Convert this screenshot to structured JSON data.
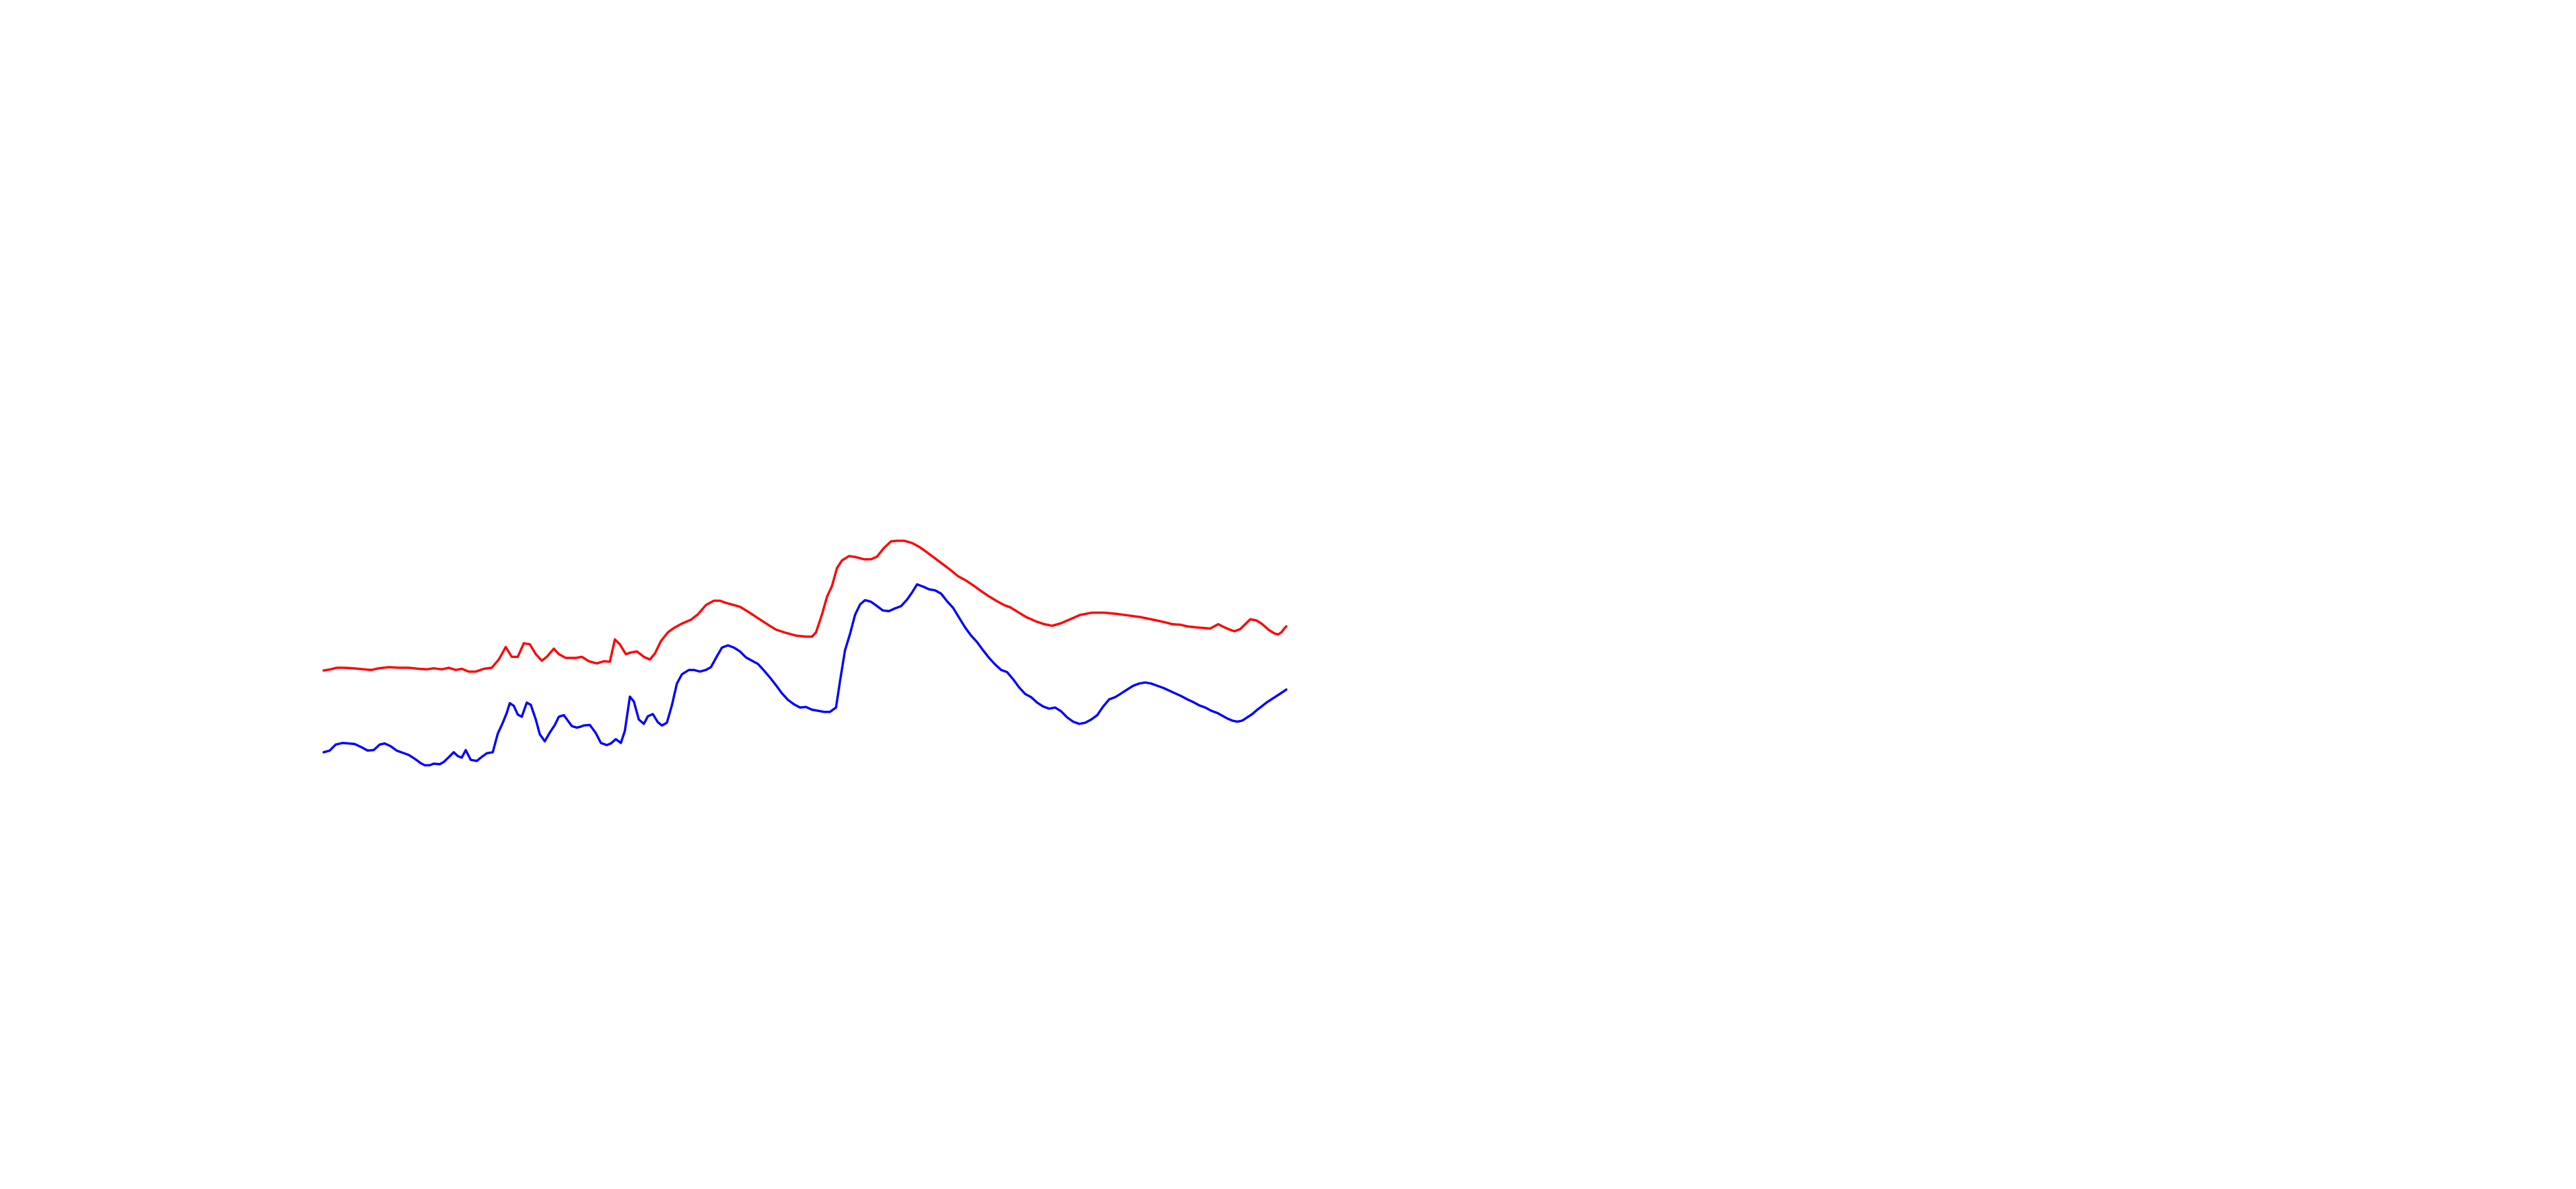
{
  "chart_data": {
    "type": "line",
    "title": "",
    "xlabel": "",
    "ylabel": "",
    "axes_visible": false,
    "grid": false,
    "legend": "none",
    "x_range": [
      0,
      100
    ],
    "y_range": [
      0,
      100
    ],
    "series": [
      {
        "color": "#ff0000",
        "points": [
          [
            0,
            40
          ],
          [
            0.7,
            40.2
          ],
          [
            1.3,
            40.5
          ],
          [
            2,
            40.5
          ],
          [
            3,
            40.4
          ],
          [
            4,
            40.2
          ],
          [
            4.8,
            40.1
          ],
          [
            5.5,
            40.4
          ],
          [
            6.5,
            40.6
          ],
          [
            7.5,
            40.5
          ],
          [
            8.5,
            40.5
          ],
          [
            9.5,
            40.3
          ],
          [
            10.3,
            40.2
          ],
          [
            11,
            40.4
          ],
          [
            11.8,
            40.2
          ],
          [
            12.5,
            40.5
          ],
          [
            13.2,
            40.1
          ],
          [
            13.8,
            40.3
          ],
          [
            14.5,
            39.8
          ],
          [
            15.2,
            39.8
          ],
          [
            16,
            40.3
          ],
          [
            16.8,
            40.5
          ],
          [
            17.5,
            42
          ],
          [
            18.2,
            44.3
          ],
          [
            18.8,
            42.5
          ],
          [
            19.4,
            42.5
          ],
          [
            20,
            45
          ],
          [
            20.6,
            44.8
          ],
          [
            21.2,
            43
          ],
          [
            21.8,
            41.8
          ],
          [
            22.3,
            42.5
          ],
          [
            23,
            44
          ],
          [
            23.5,
            43
          ],
          [
            24.2,
            42.3
          ],
          [
            25.2,
            42.3
          ],
          [
            25.8,
            42.5
          ],
          [
            26.5,
            41.7
          ],
          [
            27.3,
            41.3
          ],
          [
            28,
            41.7
          ],
          [
            28.6,
            41.6
          ],
          [
            29.1,
            45.7
          ],
          [
            29.6,
            44.8
          ],
          [
            30.2,
            43
          ],
          [
            30.7,
            43.3
          ],
          [
            31.3,
            43.5
          ],
          [
            32,
            42.5
          ],
          [
            32.6,
            42
          ],
          [
            33.1,
            43.1
          ],
          [
            33.7,
            45.4
          ],
          [
            34.4,
            47
          ],
          [
            35,
            47.8
          ],
          [
            35.8,
            48.6
          ],
          [
            36.7,
            49.3
          ],
          [
            37.4,
            50.3
          ],
          [
            38.2,
            52
          ],
          [
            39,
            52.8
          ],
          [
            39.6,
            52.8
          ],
          [
            40.2,
            52.4
          ],
          [
            41,
            52
          ],
          [
            41.6,
            51.7
          ],
          [
            42.4,
            50.8
          ],
          [
            43.4,
            49.6
          ],
          [
            44.4,
            48.4
          ],
          [
            45.2,
            47.5
          ],
          [
            46.2,
            46.9
          ],
          [
            47.2,
            46.4
          ],
          [
            48.2,
            46.2
          ],
          [
            48.8,
            46.2
          ],
          [
            49.2,
            47
          ],
          [
            49.8,
            50.3
          ],
          [
            50.3,
            53.5
          ],
          [
            50.8,
            55.5
          ],
          [
            51.3,
            58.8
          ],
          [
            51.8,
            60.2
          ],
          [
            52.5,
            61
          ],
          [
            53.2,
            60.8
          ],
          [
            54,
            60.4
          ],
          [
            54.7,
            60.4
          ],
          [
            55.3,
            60.9
          ],
          [
            56,
            62.5
          ],
          [
            56.7,
            63.7
          ],
          [
            57.3,
            63.8
          ],
          [
            58,
            63.8
          ],
          [
            58.8,
            63.4
          ],
          [
            59.5,
            62.7
          ],
          [
            60.2,
            61.8
          ],
          [
            61,
            60.7
          ],
          [
            61.8,
            59.6
          ],
          [
            62.6,
            58.5
          ],
          [
            63.4,
            57.3
          ],
          [
            64.2,
            56.5
          ],
          [
            65,
            55.5
          ],
          [
            65.6,
            54.7
          ],
          [
            66.4,
            53.7
          ],
          [
            67.2,
            52.8
          ],
          [
            68,
            52
          ],
          [
            68.6,
            51.6
          ],
          [
            69.4,
            50.7
          ],
          [
            70.2,
            49.8
          ],
          [
            71.2,
            49
          ],
          [
            72,
            48.5
          ],
          [
            72.8,
            48.2
          ],
          [
            73.6,
            48.6
          ],
          [
            74.6,
            49.4
          ],
          [
            75.6,
            50.2
          ],
          [
            76.8,
            50.6
          ],
          [
            78,
            50.6
          ],
          [
            79.2,
            50.4
          ],
          [
            80.4,
            50.1
          ],
          [
            81.6,
            49.8
          ],
          [
            82.4,
            49.5
          ],
          [
            83.2,
            49.2
          ],
          [
            84.2,
            48.8
          ],
          [
            84.8,
            48.5
          ],
          [
            85.6,
            48.4
          ],
          [
            86.3,
            48.1
          ],
          [
            87.2,
            47.9
          ],
          [
            88,
            47.8
          ],
          [
            88.6,
            47.7
          ],
          [
            89,
            48.1
          ],
          [
            89.4,
            48.5
          ],
          [
            89.8,
            48.1
          ],
          [
            90.4,
            47.6
          ],
          [
            91,
            47.2
          ],
          [
            91.6,
            47.6
          ],
          [
            92.1,
            48.5
          ],
          [
            92.6,
            49.4
          ],
          [
            93.2,
            49.2
          ],
          [
            93.8,
            48.5
          ],
          [
            94.4,
            47.5
          ],
          [
            95,
            46.8
          ],
          [
            95.4,
            46.6
          ],
          [
            95.7,
            47
          ],
          [
            96,
            47.7
          ],
          [
            96.2,
            48.1
          ]
        ]
      },
      {
        "color": "#0000ff",
        "points": [
          [
            0,
            25
          ],
          [
            0.6,
            25.3
          ],
          [
            1.2,
            26.4
          ],
          [
            1.9,
            26.7
          ],
          [
            2.5,
            26.6
          ],
          [
            3.1,
            26.5
          ],
          [
            3.8,
            25.9
          ],
          [
            4.4,
            25.3
          ],
          [
            5,
            25.4
          ],
          [
            5.6,
            26.4
          ],
          [
            6.1,
            26.6
          ],
          [
            6.7,
            26.1
          ],
          [
            7.3,
            25.3
          ],
          [
            7.9,
            24.9
          ],
          [
            8.5,
            24.5
          ],
          [
            9.1,
            23.8
          ],
          [
            9.7,
            23
          ],
          [
            10.1,
            22.6
          ],
          [
            10.6,
            22.6
          ],
          [
            11,
            22.9
          ],
          [
            11.6,
            22.8
          ],
          [
            12,
            23.2
          ],
          [
            12.5,
            24.1
          ],
          [
            13,
            25
          ],
          [
            13.4,
            24.3
          ],
          [
            13.8,
            24
          ],
          [
            14.2,
            25.4
          ],
          [
            14.7,
            23.6
          ],
          [
            15.3,
            23.4
          ],
          [
            15.7,
            24
          ],
          [
            16.3,
            24.8
          ],
          [
            16.9,
            25
          ],
          [
            17.4,
            28.4
          ],
          [
            17.9,
            30.4
          ],
          [
            18.3,
            32.2
          ],
          [
            18.6,
            34
          ],
          [
            19,
            33.5
          ],
          [
            19.4,
            31.9
          ],
          [
            19.8,
            31.5
          ],
          [
            20.3,
            34.1
          ],
          [
            20.7,
            33.7
          ],
          [
            21.2,
            31
          ],
          [
            21.6,
            28.3
          ],
          [
            22.1,
            27
          ],
          [
            22.6,
            28.6
          ],
          [
            23.1,
            30
          ],
          [
            23.5,
            31.5
          ],
          [
            24,
            31.8
          ],
          [
            24.4,
            30.8
          ],
          [
            24.8,
            29.8
          ],
          [
            25.3,
            29.5
          ],
          [
            25.7,
            29.7
          ],
          [
            26,
            29.9
          ],
          [
            26.6,
            30
          ],
          [
            27.2,
            28.5
          ],
          [
            27.7,
            26.7
          ],
          [
            28.3,
            26.3
          ],
          [
            28.7,
            26.6
          ],
          [
            29.2,
            27.4
          ],
          [
            29.7,
            26.7
          ],
          [
            30.1,
            28.9
          ],
          [
            30.6,
            35.2
          ],
          [
            31,
            34.3
          ],
          [
            31.5,
            31
          ],
          [
            32,
            30.2
          ],
          [
            32.4,
            31.6
          ],
          [
            32.9,
            32
          ],
          [
            33.4,
            30.5
          ],
          [
            33.8,
            29.9
          ],
          [
            34.3,
            30.4
          ],
          [
            34.8,
            33.6
          ],
          [
            35.3,
            37.6
          ],
          [
            35.8,
            39.3
          ],
          [
            36.5,
            40.1
          ],
          [
            37,
            40.1
          ],
          [
            37.6,
            39.8
          ],
          [
            38.2,
            40.1
          ],
          [
            38.7,
            40.6
          ],
          [
            39.3,
            42.6
          ],
          [
            39.8,
            44.2
          ],
          [
            40.4,
            44.6
          ],
          [
            41,
            44.2
          ],
          [
            41.6,
            43.5
          ],
          [
            42.2,
            42.4
          ],
          [
            42.8,
            41.8
          ],
          [
            43.4,
            41.2
          ],
          [
            44,
            40
          ],
          [
            44.6,
            38.7
          ],
          [
            45.2,
            37.3
          ],
          [
            45.8,
            35.8
          ],
          [
            46.4,
            34.6
          ],
          [
            47,
            33.8
          ],
          [
            47.6,
            33.2
          ],
          [
            48.2,
            33.3
          ],
          [
            48.8,
            32.8
          ],
          [
            49.4,
            32.6
          ],
          [
            50,
            32.4
          ],
          [
            50.6,
            32.4
          ],
          [
            51.2,
            33.2
          ],
          [
            51.6,
            38
          ],
          [
            52.1,
            43.7
          ],
          [
            52.6,
            46.7
          ],
          [
            53.1,
            50.2
          ],
          [
            53.6,
            52.1
          ],
          [
            54.1,
            52.9
          ],
          [
            54.7,
            52.6
          ],
          [
            55.3,
            51.8
          ],
          [
            55.9,
            51
          ],
          [
            56.5,
            50.9
          ],
          [
            57.1,
            51.4
          ],
          [
            57.7,
            51.8
          ],
          [
            58.3,
            53
          ],
          [
            58.8,
            54.3
          ],
          [
            59.3,
            55.8
          ],
          [
            59.9,
            55.4
          ],
          [
            60.5,
            54.9
          ],
          [
            61.1,
            54.7
          ],
          [
            61.7,
            54.1
          ],
          [
            62.3,
            52.7
          ],
          [
            62.9,
            51.5
          ],
          [
            63.5,
            49.7
          ],
          [
            64.1,
            47.9
          ],
          [
            64.7,
            46.4
          ],
          [
            65.3,
            45.2
          ],
          [
            65.9,
            43.7
          ],
          [
            66.5,
            42.3
          ],
          [
            67.1,
            41.1
          ],
          [
            67.7,
            40.1
          ],
          [
            68.3,
            39.7
          ],
          [
            68.9,
            38.4
          ],
          [
            69.5,
            36.9
          ],
          [
            70.1,
            35.7
          ],
          [
            70.7,
            35.1
          ],
          [
            71.3,
            34.1
          ],
          [
            71.9,
            33.4
          ],
          [
            72.5,
            33
          ],
          [
            73.1,
            33.2
          ],
          [
            73.7,
            32.5
          ],
          [
            74.3,
            31.4
          ],
          [
            74.9,
            30.6
          ],
          [
            75.5,
            30.2
          ],
          [
            76.1,
            30.4
          ],
          [
            76.7,
            31
          ],
          [
            77.3,
            31.8
          ],
          [
            77.9,
            33.4
          ],
          [
            78.5,
            34.7
          ],
          [
            79.1,
            35.1
          ],
          [
            79.7,
            35.8
          ],
          [
            80.3,
            36.5
          ],
          [
            80.9,
            37.2
          ],
          [
            81.5,
            37.6
          ],
          [
            82.1,
            37.8
          ],
          [
            82.7,
            37.6
          ],
          [
            83.3,
            37.2
          ],
          [
            83.9,
            36.8
          ],
          [
            84.5,
            36.3
          ],
          [
            85.1,
            35.8
          ],
          [
            85.7,
            35.3
          ],
          [
            86.3,
            34.7
          ],
          [
            86.9,
            34.2
          ],
          [
            87.5,
            33.6
          ],
          [
            88.1,
            33.2
          ],
          [
            88.7,
            32.6
          ],
          [
            89.3,
            32.2
          ],
          [
            89.9,
            31.6
          ],
          [
            90.3,
            31.2
          ],
          [
            90.8,
            30.8
          ],
          [
            91.3,
            30.6
          ],
          [
            91.8,
            30.8
          ],
          [
            92.3,
            31.4
          ],
          [
            92.8,
            32
          ],
          [
            93.3,
            32.8
          ],
          [
            93.8,
            33.5
          ],
          [
            94.3,
            34.2
          ],
          [
            94.8,
            34.8
          ],
          [
            95.3,
            35.4
          ],
          [
            95.8,
            36
          ],
          [
            96.2,
            36.5
          ]
        ]
      }
    ]
  }
}
